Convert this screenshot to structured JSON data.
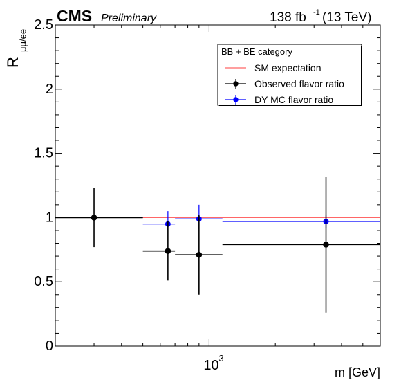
{
  "header": {
    "experiment": "CMS",
    "status": "Preliminary",
    "lumi_value": "138 fb",
    "lumi_exponent": "-1",
    "lumi_energy": "(13 TeV)"
  },
  "chart_data": {
    "type": "scatter",
    "x_scale": "log",
    "xlabel": "m  [GeV]",
    "ylabel_main": "R",
    "ylabel_subscript": "μμ/ee",
    "xlim": [
      200,
      6000
    ],
    "ylim": [
      0,
      2.5
    ],
    "x_ticks": [
      {
        "value": 1000,
        "base": "10",
        "exponent": "3"
      }
    ],
    "y_ticks": [
      {
        "value": 0,
        "label": "0"
      },
      {
        "value": 0.5,
        "label": "0.5"
      },
      {
        "value": 1,
        "label": "1"
      },
      {
        "value": 1.5,
        "label": "1.5"
      },
      {
        "value": 2,
        "label": "2"
      },
      {
        "value": 2.5,
        "label": "2.5"
      }
    ],
    "legend": {
      "title": "BB + BE category",
      "position": "top-right",
      "entries": [
        {
          "label": "SM expectation",
          "color": "#ff6666",
          "marker": "line"
        },
        {
          "label": "Observed flavor ratio",
          "color": "#000000",
          "marker": "point"
        },
        {
          "label": "DY MC flavor ratio",
          "color": "#0000ff",
          "marker": "point"
        }
      ]
    },
    "series": [
      {
        "name": "SM expectation",
        "kind": "line",
        "color": "#ff6666",
        "points": [
          {
            "x": 200,
            "y": 1
          },
          {
            "x": 6000,
            "y": 1
          }
        ]
      },
      {
        "name": "DY MC flavor ratio",
        "kind": "errorbar",
        "color": "#0000ff",
        "points": [
          {
            "x": 300,
            "y": 1.0,
            "xlow": 200,
            "xhigh": 500,
            "yerr_low": 0.0,
            "yerr_high": 0.0
          },
          {
            "x": 650,
            "y": 0.95,
            "xlow": 500,
            "xhigh": 700,
            "yerr_low": 0.05,
            "yerr_high": 0.1
          },
          {
            "x": 900,
            "y": 0.99,
            "xlow": 700,
            "xhigh": 1150,
            "yerr_low": 0.08,
            "yerr_high": 0.11
          },
          {
            "x": 3400,
            "y": 0.97,
            "xlow": 1150,
            "xhigh": 6000,
            "yerr_low": 0.05,
            "yerr_high": 0.05
          }
        ]
      },
      {
        "name": "Observed flavor ratio",
        "kind": "errorbar",
        "color": "#000000",
        "points": [
          {
            "x": 300,
            "y": 1.0,
            "xlow": 200,
            "xhigh": 500,
            "yerr_low": 0.23,
            "yerr_high": 0.23
          },
          {
            "x": 650,
            "y": 0.74,
            "xlow": 500,
            "xhigh": 700,
            "yerr_low": 0.23,
            "yerr_high": 0.23
          },
          {
            "x": 900,
            "y": 0.71,
            "xlow": 700,
            "xhigh": 1150,
            "yerr_low": 0.31,
            "yerr_high": 0.31
          },
          {
            "x": 3400,
            "y": 0.79,
            "xlow": 1150,
            "xhigh": 6000,
            "yerr_low": 0.53,
            "yerr_high": 0.53
          }
        ]
      }
    ]
  }
}
